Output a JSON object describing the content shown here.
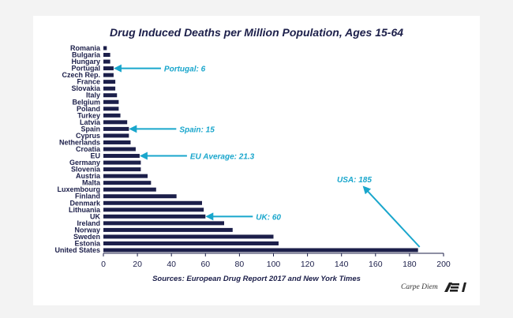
{
  "chart_data": {
    "type": "bar",
    "orientation": "horizontal",
    "title": "Drug Induced Deaths per Million Population, Ages 15-64",
    "source": "Sources: European Drug Report 2017 and New York Times",
    "categories": [
      "Romania",
      "Bulgaria",
      "Hungary",
      "Portugal",
      "Czech Rep.",
      "France",
      "Slovakia",
      "Italy",
      "Belgium",
      "Poland",
      "Turkey",
      "Latvia",
      "Spain",
      "Cyprus",
      "Netherlands",
      "Croatia",
      "EU",
      "Germany",
      "Slovenia",
      "Austria",
      "Malta",
      "Luxembourg",
      "Finland",
      "Denmark",
      "Lithuania",
      "UK",
      "Ireland",
      "Norway",
      "Sweden",
      "Estonia",
      "United States"
    ],
    "values": [
      2,
      4,
      4,
      6,
      6,
      7,
      7,
      8,
      9,
      9,
      10,
      14,
      15,
      15,
      16,
      19,
      21.3,
      22,
      22,
      26,
      28,
      31,
      43,
      58,
      59,
      60,
      71,
      76,
      100,
      103,
      185
    ],
    "xlim": [
      0,
      200
    ],
    "xticks": [
      0,
      20,
      40,
      60,
      80,
      100,
      120,
      140,
      160,
      180,
      200
    ],
    "bar_color": "#1c1f4a",
    "annotations": [
      {
        "label": "Portugal: 6",
        "category": "Portugal",
        "value": 6
      },
      {
        "label": "Spain: 15",
        "category": "Spain",
        "value": 15
      },
      {
        "label": "EU Average: 21.3",
        "category": "EU",
        "value": 21.3
      },
      {
        "label": "UK: 60",
        "category": "UK",
        "value": 60
      },
      {
        "label": "USA: 185",
        "category": "United States",
        "value": 185
      }
    ],
    "annotation_color": "#19a6cc"
  },
  "branding": {
    "text": "Carpe Diem",
    "logo": "AEI"
  }
}
